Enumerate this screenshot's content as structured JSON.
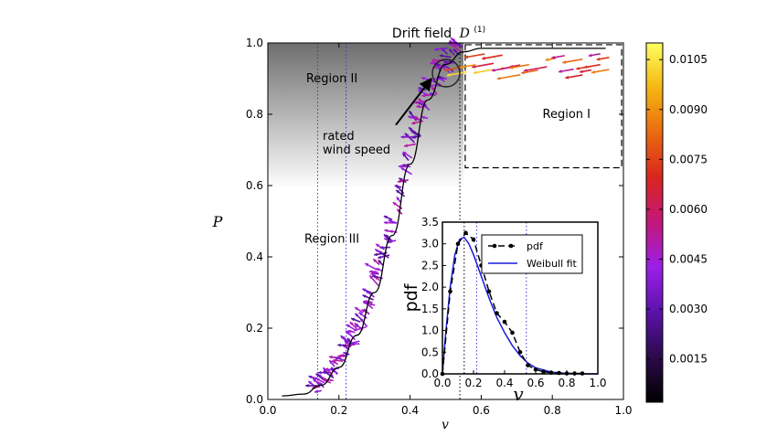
{
  "chart_data": [
    {
      "type": "quiver",
      "title_text": "Drift field",
      "title_symbol": "D",
      "title_superscript": "(1)",
      "xlabel": "v",
      "ylabel": "P",
      "xlim": [
        0.0,
        1.0
      ],
      "ylim": [
        0.0,
        1.0
      ],
      "xticks": [
        "0.0",
        "0.2",
        "0.4",
        "0.6",
        "0.8",
        "1.0"
      ],
      "yticks": [
        "0.0",
        "0.2",
        "0.4",
        "0.6",
        "0.8",
        "1.0"
      ],
      "power_curve": {
        "v": [
          0.04,
          0.1,
          0.15,
          0.2,
          0.25,
          0.3,
          0.35,
          0.4,
          0.45,
          0.5,
          0.55,
          0.6,
          0.7,
          0.8,
          0.95
        ],
        "P": [
          0.01,
          0.015,
          0.04,
          0.09,
          0.18,
          0.3,
          0.46,
          0.66,
          0.84,
          0.94,
          0.975,
          0.985,
          0.985,
          0.985,
          0.985
        ]
      },
      "vertical_lines_v": [
        0.14,
        0.22,
        0.54
      ],
      "regions": [
        {
          "label": "Region II",
          "v": 0.18,
          "P": 0.9
        },
        {
          "label": "Region III",
          "v": 0.18,
          "P": 0.45
        },
        {
          "label": "Region I",
          "v": 0.84,
          "P": 0.8
        }
      ],
      "region_I_box": {
        "v_min": 0.555,
        "v_max": 0.995,
        "P_min": 0.65,
        "P_max": 0.995
      },
      "annotation": {
        "lines": [
          "rated",
          "wind speed"
        ],
        "text_v": 0.18,
        "text_P": 0.74,
        "arrow_from": [
          0.36,
          0.77
        ],
        "arrow_to": [
          0.46,
          0.9
        ]
      },
      "arrow_samples": [
        {
          "v": 0.05,
          "P": 0.012
        },
        {
          "v": 0.09,
          "P": 0.014
        },
        {
          "v": 0.13,
          "P": 0.03
        },
        {
          "v": 0.17,
          "P": 0.06
        },
        {
          "v": 0.21,
          "P": 0.11
        },
        {
          "v": 0.25,
          "P": 0.18
        },
        {
          "v": 0.29,
          "P": 0.27
        },
        {
          "v": 0.33,
          "P": 0.38
        },
        {
          "v": 0.37,
          "P": 0.52
        },
        {
          "v": 0.41,
          "P": 0.64
        },
        {
          "v": 0.44,
          "P": 0.78
        },
        {
          "v": 0.47,
          "P": 0.88
        },
        {
          "v": 0.5,
          "P": 0.96
        },
        {
          "v": 0.57,
          "P": 0.97
        },
        {
          "v": 0.62,
          "P": 0.94
        },
        {
          "v": 0.68,
          "P": 0.92
        },
        {
          "v": 0.74,
          "P": 0.96
        },
        {
          "v": 0.8,
          "P": 0.98
        },
        {
          "v": 0.88,
          "P": 0.98
        },
        {
          "v": 0.94,
          "P": 0.975
        }
      ]
    },
    {
      "type": "line",
      "role": "inset",
      "xlabel": "v",
      "ylabel": "pdf",
      "xlim": [
        0.0,
        1.0
      ],
      "ylim": [
        0.0,
        3.5
      ],
      "xticks": [
        "0.0",
        "0.2",
        "0.4",
        "0.6",
        "0.8",
        "1.0"
      ],
      "yticks": [
        "0.0",
        "0.5",
        "1.0",
        "1.5",
        "2.0",
        "2.5",
        "3.0",
        "3.5"
      ],
      "vertical_lines_v": [
        0.14,
        0.22,
        0.54
      ],
      "series": [
        {
          "name": "pdf",
          "style": "dashed-dots",
          "x": [
            0.0,
            0.05,
            0.1,
            0.15,
            0.2,
            0.25,
            0.3,
            0.35,
            0.4,
            0.45,
            0.5,
            0.55,
            0.6,
            0.65,
            0.7,
            0.75,
            0.8,
            0.85,
            0.9
          ],
          "y": [
            0.0,
            1.9,
            3.0,
            3.25,
            3.1,
            2.5,
            1.9,
            1.4,
            1.2,
            0.95,
            0.5,
            0.2,
            0.1,
            0.05,
            0.03,
            0.02,
            0.01,
            0.01,
            0.01
          ]
        },
        {
          "name": "Weibull fit",
          "style": "solid",
          "x": [
            0.0,
            0.02,
            0.05,
            0.08,
            0.11,
            0.14,
            0.17,
            0.2,
            0.25,
            0.3,
            0.35,
            0.4,
            0.45,
            0.5,
            0.55,
            0.6,
            0.7,
            0.8,
            0.9,
            1.0
          ],
          "y": [
            0.0,
            0.9,
            2.0,
            2.75,
            3.1,
            3.15,
            3.0,
            2.75,
            2.25,
            1.75,
            1.3,
            0.95,
            0.65,
            0.42,
            0.25,
            0.14,
            0.04,
            0.01,
            0.0,
            0.0
          ]
        }
      ]
    },
    {
      "type": "colorbar",
      "ticks": [
        "0.0015",
        "0.0030",
        "0.0045",
        "0.0060",
        "0.0075",
        "0.0090",
        "0.0105"
      ],
      "tick_values": [
        0.0015,
        0.003,
        0.0045,
        0.006,
        0.0075,
        0.009,
        0.0105
      ],
      "range": [
        0.0002,
        0.011
      ],
      "colors": [
        "#000000",
        "#2b0a4a",
        "#5a12a8",
        "#9b1fe8",
        "#c2177a",
        "#d8251f",
        "#ea6a10",
        "#f5b613",
        "#ffff60"
      ]
    }
  ]
}
